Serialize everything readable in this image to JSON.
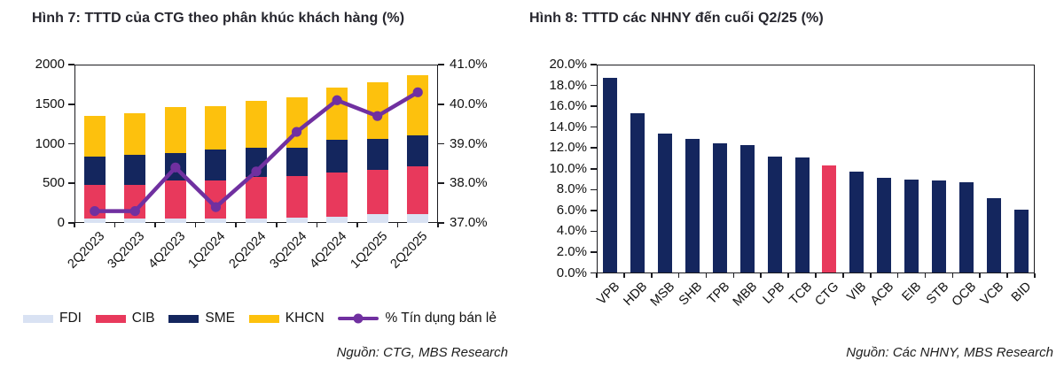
{
  "chart_data": [
    {
      "type": "stacked-bar-line",
      "title": "Hình 7: TTTD của CTG theo phân khúc khách hàng (%)",
      "source": "Nguồn: CTG, MBS Research",
      "categories": [
        "2Q2023",
        "3Q2023",
        "4Q2023",
        "1Q2024",
        "2Q2024",
        "3Q2024",
        "4Q2024",
        "1Q2025",
        "2Q2025"
      ],
      "stacked_series": [
        {
          "name": "FDI",
          "color": "#D9E2F3",
          "values": [
            55,
            55,
            55,
            55,
            55,
            70,
            75,
            110,
            110
          ]
        },
        {
          "name": "CIB",
          "color": "#E8395C",
          "values": [
            420,
            420,
            480,
            485,
            525,
            525,
            560,
            560,
            610
          ]
        },
        {
          "name": "SME",
          "color": "#14265E",
          "values": [
            360,
            385,
            350,
            390,
            365,
            360,
            410,
            390,
            390
          ]
        },
        {
          "name": "KHCN",
          "color": "#FDC10D",
          "values": [
            520,
            520,
            580,
            550,
            595,
            630,
            660,
            720,
            760
          ]
        }
      ],
      "line_series": {
        "name": "% Tín dụng bán lẻ",
        "color": "#7030A0",
        "values": [
          37.3,
          37.3,
          38.4,
          37.4,
          38.3,
          39.3,
          40.1,
          39.7,
          40.3
        ]
      },
      "left_axis": {
        "min": 0,
        "max": 2000,
        "tick_labels": [
          "0",
          "500",
          "1000",
          "1500",
          "2000"
        ]
      },
      "right_axis": {
        "min": 37,
        "max": 41,
        "tick_labels": [
          "37.0%",
          "38.0%",
          "39.0%",
          "40.0%",
          "41.0%"
        ]
      },
      "legend_position": "bottom",
      "grid": false
    },
    {
      "type": "bar",
      "title": "Hình 8: TTTD các NHNY đến cuối Q2/25 (%)",
      "source": "Nguồn: Các NHNY, MBS Research",
      "categories": [
        "VPB",
        "HDB",
        "MSB",
        "SHB",
        "TPB",
        "MBB",
        "LPB",
        "TCB",
        "CTG",
        "VIB",
        "ACB",
        "EIB",
        "STB",
        "OCB",
        "VCB",
        "BID"
      ],
      "values": [
        18.7,
        15.3,
        13.4,
        12.9,
        12.4,
        12.3,
        11.2,
        11.1,
        10.3,
        9.7,
        9.1,
        9.0,
        8.9,
        8.7,
        7.2,
        6.1
      ],
      "bar_color": "#14265E",
      "highlight": {
        "category": "CTG",
        "index": 8,
        "color": "#E8395C"
      },
      "y_axis": {
        "min": 0,
        "max": 20,
        "tick_labels": [
          "0.0%",
          "2.0%",
          "4.0%",
          "6.0%",
          "8.0%",
          "10.0%",
          "12.0%",
          "14.0%",
          "16.0%",
          "18.0%",
          "20.0%"
        ]
      },
      "grid": false
    }
  ]
}
